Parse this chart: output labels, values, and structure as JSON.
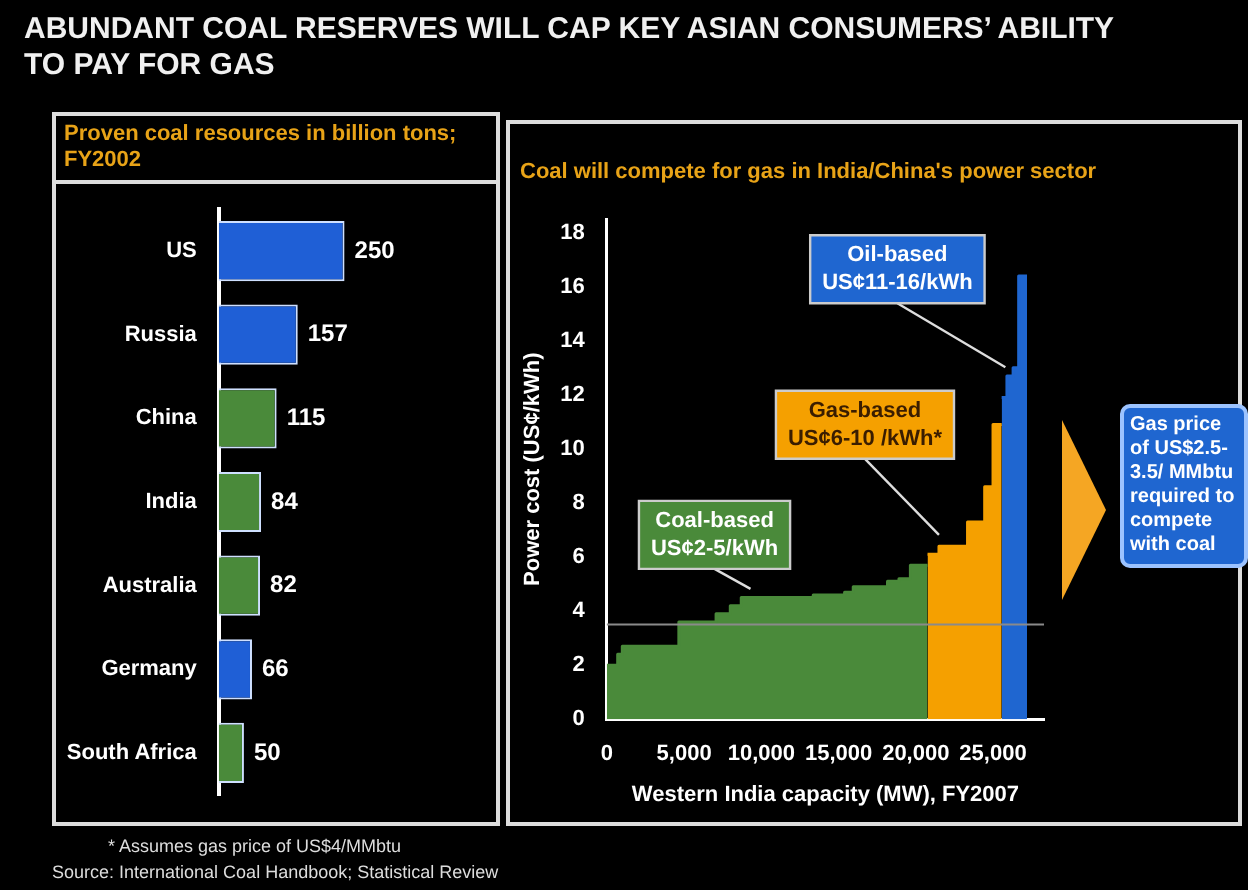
{
  "chart_data": [
    {
      "type": "bar",
      "orientation": "horizontal",
      "title": "ABUNDANT COAL RESERVES WILL CAP KEY ASIAN CONSUMERS’ ABILITY TO PAY FOR GAS",
      "subtitle": "Proven coal resources in billion tons; FY2002",
      "categories": [
        "US",
        "Russia",
        "China",
        "India",
        "Australia",
        "Germany",
        "South Africa"
      ],
      "values": [
        250,
        157,
        115,
        84,
        82,
        66,
        50
      ],
      "colors": [
        "#1f5fd6",
        "#1f5fd6",
        "#4a8a3a",
        "#4a8a3a",
        "#4a8a3a",
        "#1f5fd6",
        "#4a8a3a"
      ],
      "data_labels": true,
      "grid": false,
      "legend": false,
      "tick_labels": "y",
      "annotations": [
        "* Assumes gas price of US$4/MMbtu",
        "Source: International Coal Handbook; Statistical Review"
      ]
    },
    {
      "type": "area",
      "title": "Coal will compete for gas in India/China's power sector",
      "xlabel": "Western India capacity (MW), FY2007",
      "ylabel": "Power cost (US¢/kWh)",
      "series": [
        {
          "color": "#4a8a3a",
          "x": [
            0,
            700,
            700,
            1000,
            1000,
            4660,
            4660,
            7070,
            7070,
            7990,
            7990,
            8700,
            8700,
            13360,
            13360,
            15390,
            15390,
            15950,
            15950,
            18170,
            18170,
            18910,
            18910,
            19650,
            19650,
            20760
          ],
          "values": [
            2.0,
            2.0,
            2.4,
            2.4,
            2.7,
            2.7,
            3.6,
            3.6,
            3.9,
            3.9,
            4.2,
            4.2,
            4.5,
            4.5,
            4.6,
            4.6,
            4.7,
            4.7,
            4.9,
            4.9,
            5.1,
            5.1,
            5.2,
            5.2,
            5.7,
            5.7
          ]
        },
        {
          "color": "#f5a000",
          "x": [
            20760,
            21500,
            21500,
            23350,
            23350,
            24460,
            24460,
            25000,
            25000,
            25560
          ],
          "values": [
            6.1,
            6.1,
            6.4,
            6.4,
            7.3,
            7.3,
            8.6,
            8.6,
            10.9,
            10.9
          ]
        },
        {
          "color": "#1f66d0",
          "x": [
            25560,
            25900,
            25900,
            26300,
            26300,
            26660,
            26660,
            27200
          ],
          "values": [
            11.9,
            11.9,
            12.7,
            12.7,
            13.0,
            13.0,
            16.4,
            16.4
          ]
        }
      ],
      "xlim": [
        0,
        28300
      ],
      "xticks": [
        0,
        {
          "value": 5000,
          "label": "5,000"
        },
        {
          "value": 10000,
          "label": "10,000"
        },
        {
          "value": 15000,
          "label": "15,000"
        },
        {
          "value": 20000,
          "label": "20,000"
        },
        {
          "value": 25000,
          "label": "25,000"
        }
      ],
      "ylim": [
        0,
        18.5
      ],
      "yticks": [
        0,
        2,
        4,
        6,
        8,
        10,
        12,
        14,
        16,
        18
      ],
      "ref_lines": [
        {
          "axis": "y",
          "value": 3.5,
          "color": "#8a8a8a"
        }
      ],
      "grid": false,
      "legend": false,
      "annotations": [
        {
          "text": "Coal-based\nUS¢2-5/kWh",
          "x": 9300,
          "y": 4.6
        },
        {
          "text": "Gas-based\nUS¢6-10 /kWh*",
          "x": 21500,
          "y": 6.6
        },
        {
          "text": "Oil-based\nUS¢11-16/kWh",
          "x": 25800,
          "y": 12.8
        },
        "Gas price of US$2.5-3.5/ MMbtu required to compete with coal"
      ]
    }
  ]
}
